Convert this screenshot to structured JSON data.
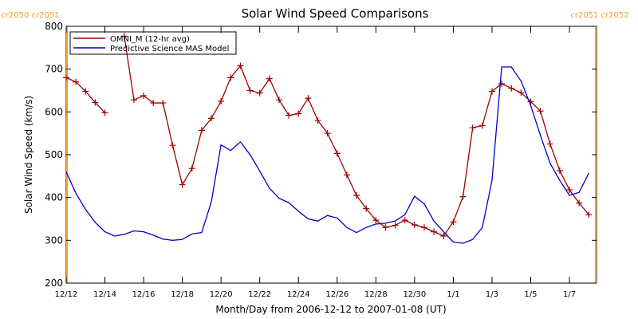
{
  "chart_data": {
    "type": "line",
    "title": "Solar Wind Speed Comparisons",
    "xlabel": "Month/Day from 2006-12-12 to 2007-01-08 (UT)",
    "ylabel": "Solar Wind Speed (km/s)",
    "annotations": [
      "cr2050 cr2051",
      "cr2051 cr2052"
    ],
    "x": [
      0,
      0.5,
      1,
      1.5,
      2,
      2.5,
      3,
      3.5,
      4,
      4.5,
      5,
      5.5,
      6,
      6.5,
      7,
      7.5,
      8,
      8.5,
      9,
      9.5,
      10,
      10.5,
      11,
      11.5,
      12,
      12.5,
      13,
      13.5,
      14,
      14.5,
      15,
      15.5,
      16,
      16.5,
      17,
      17.5,
      18,
      18.5,
      19,
      19.5,
      20,
      20.5,
      21,
      21.5,
      22,
      22.5,
      23,
      23.5,
      24,
      24.5,
      25,
      25.5,
      26,
      26.5,
      27
    ],
    "series": [
      {
        "name": "OMNI_M (12-hr avg)",
        "color": "#a00000",
        "markers": true,
        "values": [
          680,
          670,
          648,
          622,
          598,
          null,
          777,
          628,
          638,
          621,
          621,
          522,
          430,
          468,
          557,
          585,
          625,
          680,
          708,
          650,
          644,
          678,
          628,
          592,
          596,
          632,
          580,
          550,
          503,
          453,
          405,
          374,
          347,
          330,
          335,
          347,
          336,
          330,
          320,
          310,
          343,
          402,
          563,
          568,
          648,
          666,
          655,
          645,
          624,
          602,
          525,
          463,
          418,
          387,
          360
        ]
      },
      {
        "name": "Predictive Science MAS Model",
        "color": "#0000c8",
        "markers": false,
        "values": [
          460,
          410,
          372,
          342,
          320,
          310,
          314,
          322,
          320,
          312,
          303,
          300,
          302,
          315,
          318,
          390,
          523,
          510,
          530,
          500,
          462,
          422,
          398,
          388,
          368,
          350,
          345,
          358,
          352,
          330,
          318,
          330,
          338,
          340,
          345,
          360,
          403,
          385,
          345,
          320,
          296,
          293,
          302,
          330,
          440,
          705,
          705,
          672,
          615,
          545,
          480,
          440,
          405,
          412,
          457
        ]
      }
    ],
    "xlim": [
      0,
      27.4
    ],
    "ylim": [
      200,
      800
    ],
    "xticks": [
      {
        "value": 0,
        "label": "12/12"
      },
      {
        "value": 2,
        "label": "12/14"
      },
      {
        "value": 4,
        "label": "12/16"
      },
      {
        "value": 6,
        "label": "12/18"
      },
      {
        "value": 8,
        "label": "12/20"
      },
      {
        "value": 10,
        "label": "12/22"
      },
      {
        "value": 12,
        "label": "12/24"
      },
      {
        "value": 14,
        "label": "12/26"
      },
      {
        "value": 16,
        "label": "12/28"
      },
      {
        "value": 18,
        "label": "12/30"
      },
      {
        "value": 20,
        "label": "1/1"
      },
      {
        "value": 22,
        "label": "1/3"
      },
      {
        "value": 24,
        "label": "1/5"
      },
      {
        "value": 26,
        "label": "1/7"
      }
    ],
    "yticks": [
      200,
      300,
      400,
      500,
      600,
      700,
      800
    ],
    "legend": "upper left"
  }
}
